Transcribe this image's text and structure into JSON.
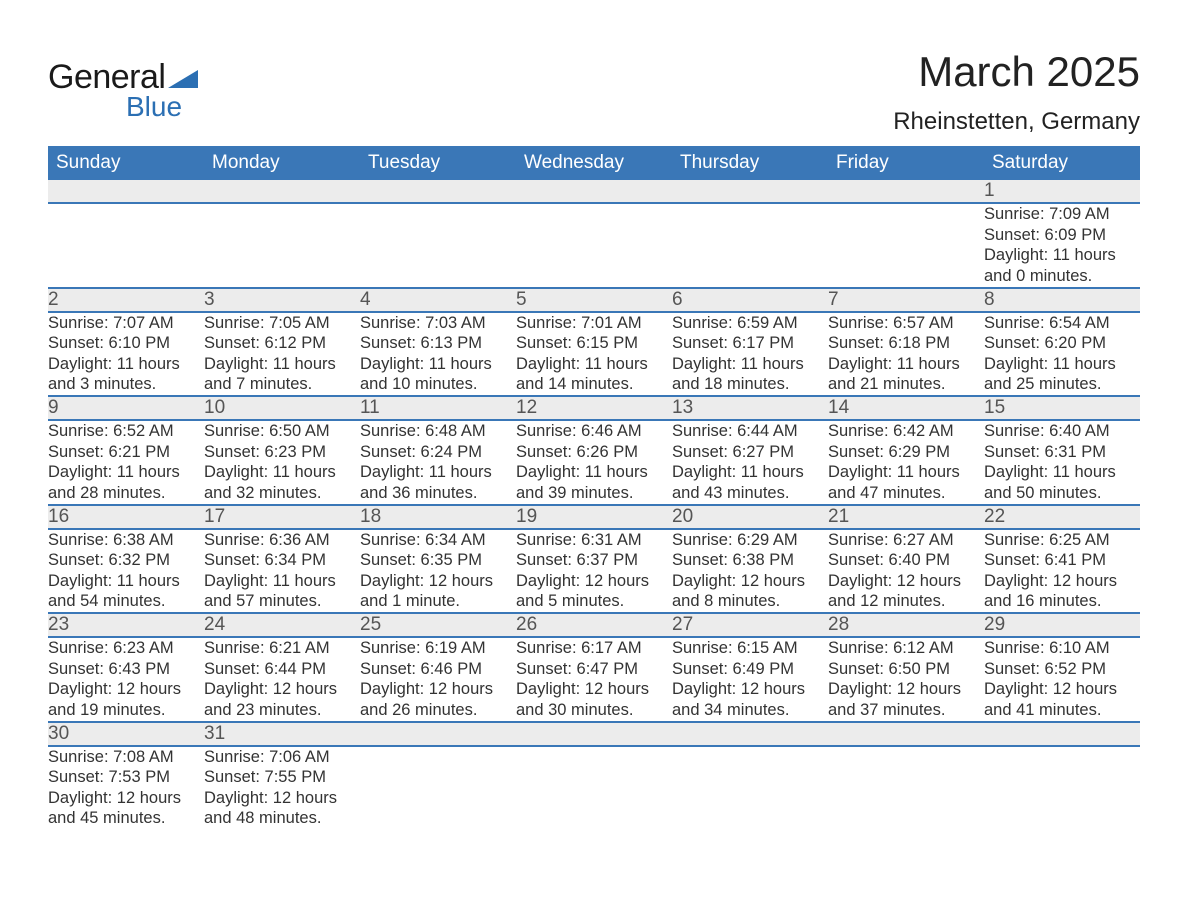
{
  "logo": {
    "text_general": "General",
    "text_blue": "Blue",
    "accent_color": "#2b6fb3"
  },
  "title": "March 2025",
  "location": "Rheinstetten, Germany",
  "colors": {
    "header_bg": "#3a77b7",
    "header_text": "#ffffff",
    "daynum_bg": "#ececec",
    "row_border": "#3a77b7",
    "body_text": "#333333"
  },
  "day_headers": [
    "Sunday",
    "Monday",
    "Tuesday",
    "Wednesday",
    "Thursday",
    "Friday",
    "Saturday"
  ],
  "weeks": [
    [
      null,
      null,
      null,
      null,
      null,
      null,
      {
        "n": "1",
        "sr": "7:09 AM",
        "ss": "6:09 PM",
        "dl": "11 hours and 0 minutes."
      }
    ],
    [
      {
        "n": "2",
        "sr": "7:07 AM",
        "ss": "6:10 PM",
        "dl": "11 hours and 3 minutes."
      },
      {
        "n": "3",
        "sr": "7:05 AM",
        "ss": "6:12 PM",
        "dl": "11 hours and 7 minutes."
      },
      {
        "n": "4",
        "sr": "7:03 AM",
        "ss": "6:13 PM",
        "dl": "11 hours and 10 minutes."
      },
      {
        "n": "5",
        "sr": "7:01 AM",
        "ss": "6:15 PM",
        "dl": "11 hours and 14 minutes."
      },
      {
        "n": "6",
        "sr": "6:59 AM",
        "ss": "6:17 PM",
        "dl": "11 hours and 18 minutes."
      },
      {
        "n": "7",
        "sr": "6:57 AM",
        "ss": "6:18 PM",
        "dl": "11 hours and 21 minutes."
      },
      {
        "n": "8",
        "sr": "6:54 AM",
        "ss": "6:20 PM",
        "dl": "11 hours and 25 minutes."
      }
    ],
    [
      {
        "n": "9",
        "sr": "6:52 AM",
        "ss": "6:21 PM",
        "dl": "11 hours and 28 minutes."
      },
      {
        "n": "10",
        "sr": "6:50 AM",
        "ss": "6:23 PM",
        "dl": "11 hours and 32 minutes."
      },
      {
        "n": "11",
        "sr": "6:48 AM",
        "ss": "6:24 PM",
        "dl": "11 hours and 36 minutes."
      },
      {
        "n": "12",
        "sr": "6:46 AM",
        "ss": "6:26 PM",
        "dl": "11 hours and 39 minutes."
      },
      {
        "n": "13",
        "sr": "6:44 AM",
        "ss": "6:27 PM",
        "dl": "11 hours and 43 minutes."
      },
      {
        "n": "14",
        "sr": "6:42 AM",
        "ss": "6:29 PM",
        "dl": "11 hours and 47 minutes."
      },
      {
        "n": "15",
        "sr": "6:40 AM",
        "ss": "6:31 PM",
        "dl": "11 hours and 50 minutes."
      }
    ],
    [
      {
        "n": "16",
        "sr": "6:38 AM",
        "ss": "6:32 PM",
        "dl": "11 hours and 54 minutes."
      },
      {
        "n": "17",
        "sr": "6:36 AM",
        "ss": "6:34 PM",
        "dl": "11 hours and 57 minutes."
      },
      {
        "n": "18",
        "sr": "6:34 AM",
        "ss": "6:35 PM",
        "dl": "12 hours and 1 minute."
      },
      {
        "n": "19",
        "sr": "6:31 AM",
        "ss": "6:37 PM",
        "dl": "12 hours and 5 minutes."
      },
      {
        "n": "20",
        "sr": "6:29 AM",
        "ss": "6:38 PM",
        "dl": "12 hours and 8 minutes."
      },
      {
        "n": "21",
        "sr": "6:27 AM",
        "ss": "6:40 PM",
        "dl": "12 hours and 12 minutes."
      },
      {
        "n": "22",
        "sr": "6:25 AM",
        "ss": "6:41 PM",
        "dl": "12 hours and 16 minutes."
      }
    ],
    [
      {
        "n": "23",
        "sr": "6:23 AM",
        "ss": "6:43 PM",
        "dl": "12 hours and 19 minutes."
      },
      {
        "n": "24",
        "sr": "6:21 AM",
        "ss": "6:44 PM",
        "dl": "12 hours and 23 minutes."
      },
      {
        "n": "25",
        "sr": "6:19 AM",
        "ss": "6:46 PM",
        "dl": "12 hours and 26 minutes."
      },
      {
        "n": "26",
        "sr": "6:17 AM",
        "ss": "6:47 PM",
        "dl": "12 hours and 30 minutes."
      },
      {
        "n": "27",
        "sr": "6:15 AM",
        "ss": "6:49 PM",
        "dl": "12 hours and 34 minutes."
      },
      {
        "n": "28",
        "sr": "6:12 AM",
        "ss": "6:50 PM",
        "dl": "12 hours and 37 minutes."
      },
      {
        "n": "29",
        "sr": "6:10 AM",
        "ss": "6:52 PM",
        "dl": "12 hours and 41 minutes."
      }
    ],
    [
      {
        "n": "30",
        "sr": "7:08 AM",
        "ss": "7:53 PM",
        "dl": "12 hours and 45 minutes."
      },
      {
        "n": "31",
        "sr": "7:06 AM",
        "ss": "7:55 PM",
        "dl": "12 hours and 48 minutes."
      },
      null,
      null,
      null,
      null,
      null
    ]
  ],
  "labels": {
    "sunrise": "Sunrise: ",
    "sunset": "Sunset: ",
    "daylight": "Daylight: "
  }
}
